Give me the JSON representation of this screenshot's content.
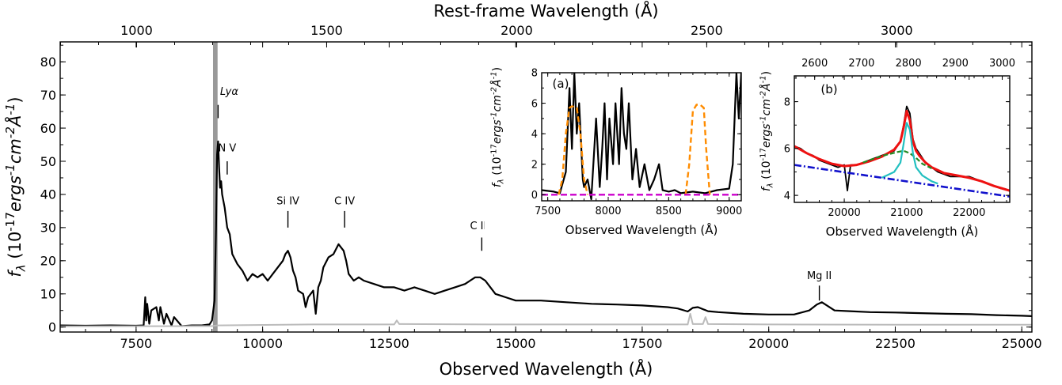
{
  "chart_data": [
    {
      "id": "main",
      "type": "line",
      "title": "",
      "xlabel": "Observed Wavelength (Å)",
      "ylabel": "f_λ (10^-17 ergs^-1 cm^-2 Å^-1)",
      "top_xlabel": "Rest-frame Wavelength (Å)",
      "xlim": [
        6000,
        25200
      ],
      "ylim": [
        -1.5,
        86
      ],
      "redshift": 6.51,
      "xticks": [
        7500,
        10000,
        12500,
        15000,
        17500,
        20000,
        22500,
        25000
      ],
      "xtick_labels": [
        "7500",
        "10000",
        "12500",
        "15000",
        "17500",
        "20000",
        "22500",
        "25000"
      ],
      "yticks": [
        0,
        10,
        20,
        30,
        40,
        50,
        60,
        70,
        80
      ],
      "ytick_labels": [
        "0",
        "10",
        "20",
        "30",
        "40",
        "50",
        "60",
        "70",
        "80"
      ],
      "top_xticks": [
        1000,
        1500,
        2000,
        2500,
        3000
      ],
      "top_xtick_labels": [
        "1000",
        "1500",
        "2000",
        "2500",
        "3000"
      ],
      "shaded_band": {
        "x": [
          9020,
          9110
        ],
        "color": "#999999"
      },
      "line_labels": [
        {
          "text": "Lyα",
          "x": 9120,
          "y_text": 70,
          "tick_y": [
            63,
            67
          ]
        },
        {
          "text": "N V",
          "x": 9300,
          "y_text": 53,
          "tick_y": [
            46,
            50
          ]
        },
        {
          "text": "Si IV",
          "x": 10500,
          "y_text": 37,
          "tick_y": [
            30,
            35
          ]
        },
        {
          "text": "C IV",
          "x": 11620,
          "y_text": 37,
          "tick_y": [
            30,
            35
          ]
        },
        {
          "text": "C III]",
          "x": 14330,
          "y_text": 29.5,
          "tick_y": [
            23,
            27
          ]
        },
        {
          "text": "Mg II",
          "x": 21000,
          "y_text": 14.5,
          "tick_y": [
            8,
            12.5
          ]
        }
      ],
      "series": [
        {
          "role": "flux",
          "color": "#000000",
          "x": [
            6000,
            6500,
            7000,
            7500,
            7650,
            7680,
            7700,
            7720,
            7760,
            7800,
            7900,
            7950,
            7980,
            8050,
            8100,
            8200,
            8250,
            8400,
            8600,
            8800,
            8950,
            9000,
            9050,
            9080,
            9100,
            9120,
            9140,
            9160,
            9180,
            9200,
            9250,
            9300,
            9350,
            9400,
            9500,
            9600,
            9700,
            9800,
            9900,
            10000,
            10100,
            10200,
            10300,
            10400,
            10450,
            10500,
            10550,
            10600,
            10650,
            10700,
            10800,
            10850,
            10900,
            11000,
            11050,
            11100,
            11150,
            11200,
            11300,
            11400,
            11500,
            11600,
            11650,
            11700,
            11800,
            11900,
            12000,
            12200,
            12400,
            12600,
            12800,
            13000,
            13200,
            13400,
            13600,
            13800,
            14000,
            14100,
            14200,
            14300,
            14400,
            14500,
            14600,
            14800,
            15000,
            15500,
            16000,
            16500,
            17000,
            17500,
            18000,
            18200,
            18400,
            18500,
            18600,
            18800,
            19000,
            19500,
            20000,
            20500,
            20800,
            20950,
            21050,
            21150,
            21300,
            21600,
            22000,
            22500,
            23000,
            23500,
            24000,
            24500,
            25000,
            25200
          ],
          "y": [
            0.5,
            0.4,
            0.5,
            0.4,
            0.5,
            9,
            2,
            7,
            1,
            5,
            6,
            2,
            6,
            1,
            4,
            0.5,
            3,
            0.3,
            0.5,
            0.5,
            0.8,
            2,
            8,
            30,
            52,
            56,
            48,
            42,
            44,
            40,
            36,
            30,
            28,
            22,
            19,
            17,
            14,
            16,
            15,
            16,
            14,
            16,
            18,
            20,
            22,
            23,
            21,
            17,
            15,
            11,
            10,
            6,
            9,
            11,
            4,
            12,
            14,
            18,
            21,
            22,
            25,
            23,
            20,
            16,
            14,
            15,
            14,
            13,
            12,
            12,
            11,
            12,
            11,
            10,
            11,
            12,
            13,
            14,
            15,
            15,
            14,
            12,
            10,
            9,
            8,
            8,
            7.5,
            7,
            6.8,
            6.5,
            6,
            5.6,
            4.7,
            5.8,
            6,
            4.8,
            4.5,
            4,
            3.8,
            3.8,
            5,
            6.8,
            7.5,
            6.5,
            5,
            4.8,
            4.5,
            4.4,
            4.2,
            4,
            3.9,
            3.6,
            3.4,
            3.3
          ]
        },
        {
          "role": "error",
          "color": "#bbbbbb",
          "x": [
            6000,
            9000,
            9100,
            11000,
            12600,
            12650,
            12700,
            14500,
            18400,
            18450,
            18500,
            18700,
            18750,
            18800,
            20000,
            22500,
            25200
          ],
          "y": [
            0.2,
            0.3,
            0.5,
            0.8,
            0.8,
            2,
            0.9,
            0.8,
            0.8,
            4,
            0.9,
            0.9,
            3,
            0.9,
            0.8,
            0.7,
            0.7
          ]
        }
      ]
    },
    {
      "id": "inset_a",
      "type": "line",
      "panel_label": "(a)",
      "xlabel": "Observed Wavelength (Å)",
      "ylabel": "f_λ (10^-17 ergs^-1 cm^-2 Å^-1)",
      "xlim": [
        7450,
        9100
      ],
      "ylim": [
        -0.4,
        8
      ],
      "xticks": [
        7500,
        8000,
        8500,
        9000
      ],
      "xtick_labels": [
        "7500",
        "8000",
        "8500",
        "9000"
      ],
      "yticks": [
        0,
        2,
        4,
        6,
        8
      ],
      "ytick_labels": [
        "0",
        "2",
        "4",
        "6",
        "8"
      ],
      "series": [
        {
          "role": "flux",
          "color": "#000000",
          "x": [
            7450,
            7550,
            7600,
            7650,
            7680,
            7700,
            7720,
            7740,
            7760,
            7790,
            7800,
            7830,
            7860,
            7900,
            7930,
            7950,
            7970,
            7990,
            8010,
            8040,
            8060,
            8090,
            8110,
            8130,
            8150,
            8170,
            8200,
            8230,
            8260,
            8300,
            8340,
            8380,
            8420,
            8450,
            8500,
            8550,
            8600,
            8700,
            8800,
            8900,
            9000,
            9030,
            9060,
            9080,
            9100
          ],
          "y": [
            0.3,
            0.2,
            0.1,
            1.5,
            7,
            3,
            8,
            4,
            6,
            1,
            0.5,
            1,
            -0.3,
            5,
            0.5,
            3,
            6,
            1,
            5,
            2,
            6,
            2,
            7,
            4,
            3,
            6,
            1,
            3,
            0.5,
            2,
            0.3,
            1,
            2,
            0.3,
            0.2,
            0.3,
            0.1,
            0.2,
            0.1,
            0.3,
            0.4,
            2,
            8,
            5,
            8
          ]
        },
        {
          "role": "filter_1",
          "color": "#ff8c00",
          "x": [
            7590,
            7620,
            7650,
            7680,
            7700,
            7740,
            7770,
            7800,
            7830
          ],
          "y": [
            0,
            1,
            4,
            5.7,
            5.8,
            5.7,
            4,
            1,
            0
          ]
        },
        {
          "role": "filter_2",
          "color": "#ff8c00",
          "x": [
            8640,
            8670,
            8700,
            8730,
            8760,
            8790,
            8810,
            8840
          ],
          "y": [
            0,
            2,
            5.5,
            5.9,
            5.9,
            5.7,
            3,
            0
          ]
        },
        {
          "role": "zero",
          "color": "#cc00cc",
          "x": [
            7450,
            9100
          ],
          "y": [
            0,
            0
          ]
        }
      ]
    },
    {
      "id": "inset_b",
      "type": "line",
      "panel_label": "(b)",
      "xlabel": "Observed Wavelength (Å)",
      "ylabel": "f_λ (10^-17 ergs^-1 cm^-2 Å^-1)",
      "xlim": [
        19200,
        22650
      ],
      "ylim": [
        3.7,
        9.1
      ],
      "xticks": [
        20000,
        21000,
        22000
      ],
      "xtick_labels": [
        "20000",
        "21000",
        "22000"
      ],
      "yticks": [
        4,
        6,
        8
      ],
      "ytick_labels": [
        "4",
        "6",
        "8"
      ],
      "top_xticks": [
        2600,
        2700,
        2800,
        2900,
        3000
      ],
      "top_xtick_labels": [
        "2600",
        "2700",
        "2800",
        "2900",
        "3000"
      ],
      "redshift": 6.51,
      "series": [
        {
          "role": "flux",
          "color": "#000000",
          "x": [
            19200,
            19300,
            19400,
            19500,
            19600,
            19700,
            19800,
            19900,
            20000,
            20050,
            20100,
            20200,
            20300,
            20400,
            20500,
            20600,
            20700,
            20800,
            20900,
            20950,
            21000,
            21050,
            21100,
            21150,
            21200,
            21300,
            21400,
            21500,
            21600,
            21700,
            21800,
            21900,
            22000,
            22100,
            22200,
            22300,
            22400,
            22500,
            22650
          ],
          "y": [
            6.1,
            6.0,
            5.8,
            5.7,
            5.5,
            5.4,
            5.3,
            5.2,
            5.3,
            4.2,
            5.3,
            5.3,
            5.4,
            5.5,
            5.6,
            5.7,
            5.8,
            5.9,
            6.3,
            7.0,
            7.8,
            7.5,
            6.4,
            6.0,
            5.8,
            5.4,
            5.2,
            5.0,
            4.9,
            4.8,
            4.8,
            4.8,
            4.8,
            4.7,
            4.6,
            4.5,
            4.4,
            4.3,
            4.2
          ]
        },
        {
          "role": "model_total",
          "color": "#ee1111",
          "x": [
            19200,
            19400,
            19600,
            19800,
            20000,
            20200,
            20400,
            20600,
            20800,
            20900,
            20950,
            21000,
            21050,
            21100,
            21150,
            21200,
            21300,
            21400,
            21600,
            21800,
            22000,
            22200,
            22400,
            22650
          ],
          "y": [
            6.1,
            5.8,
            5.55,
            5.35,
            5.25,
            5.3,
            5.45,
            5.65,
            5.95,
            6.3,
            6.9,
            7.6,
            7.2,
            6.3,
            5.9,
            5.7,
            5.4,
            5.2,
            4.95,
            4.85,
            4.75,
            4.6,
            4.4,
            4.2
          ]
        },
        {
          "role": "broad_component",
          "color": "#228B22",
          "x": [
            20300,
            20500,
            20700,
            20850,
            20950,
            21050,
            21150,
            21250,
            21400
          ],
          "y": [
            5.4,
            5.6,
            5.75,
            5.85,
            5.9,
            5.8,
            5.6,
            5.35,
            5.15
          ]
        },
        {
          "role": "narrow_component",
          "color": "#22c0c0",
          "x": [
            20600,
            20800,
            20900,
            20950,
            21000,
            21050,
            21100,
            21150,
            21250,
            21400,
            21500
          ],
          "y": [
            4.75,
            5.0,
            5.4,
            6.2,
            7.1,
            6.8,
            5.8,
            5.2,
            4.85,
            4.6,
            4.5
          ]
        },
        {
          "role": "continuum",
          "color": "#1111cc",
          "x": [
            19200,
            22650
          ],
          "y": [
            5.3,
            3.95
          ]
        }
      ]
    }
  ]
}
